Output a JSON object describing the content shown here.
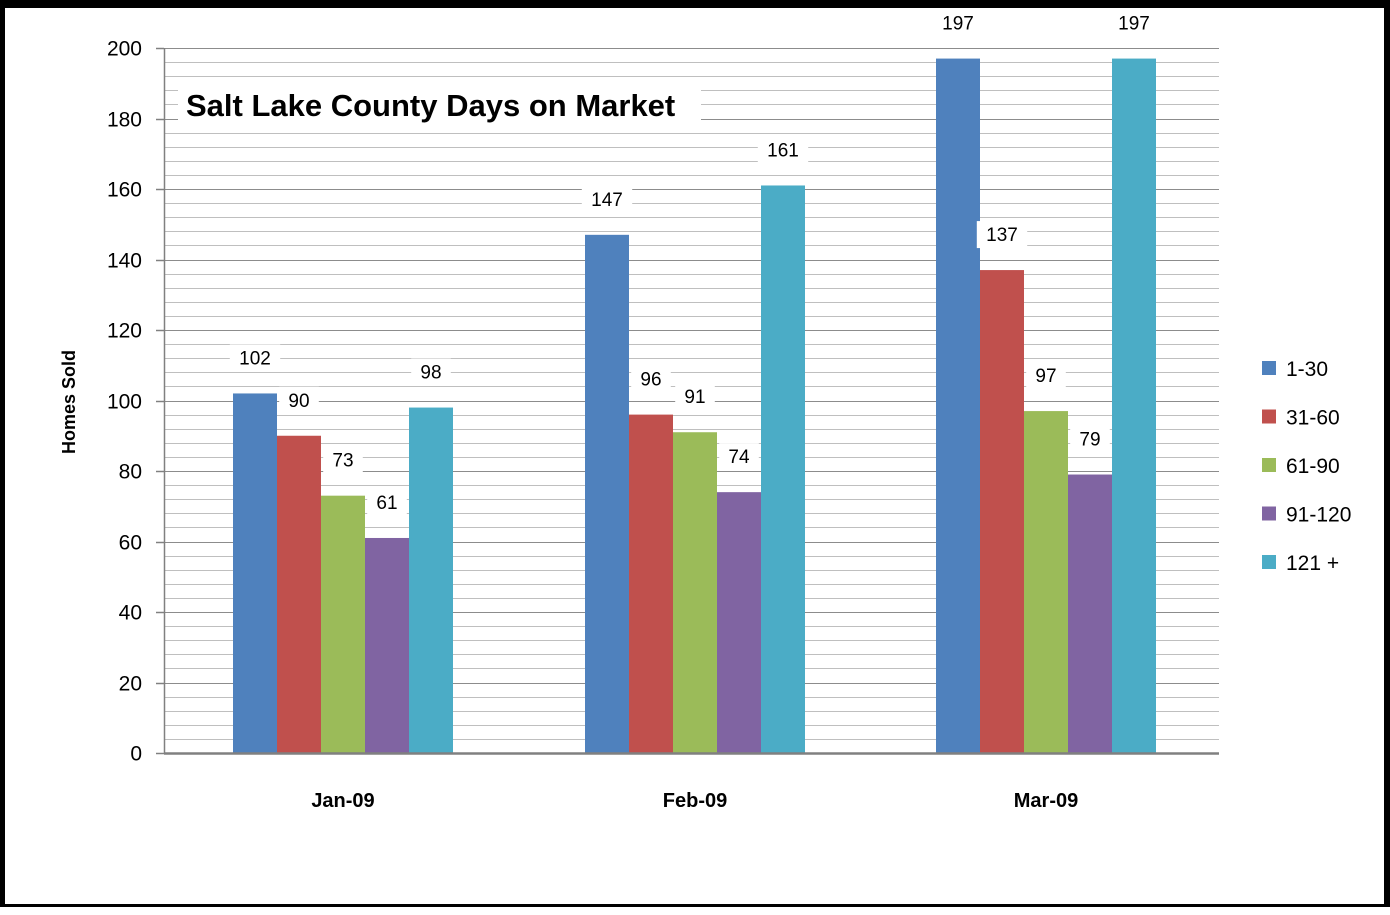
{
  "chart_data": {
    "type": "bar",
    "title": "Salt Lake County Days on Market",
    "xlabel": "",
    "ylabel": "Homes Sold",
    "categories": [
      "Jan-09",
      "Feb-09",
      "Mar-09"
    ],
    "series": [
      {
        "name": "1-30",
        "color": "#4F81BD",
        "values": [
          102,
          147,
          197
        ]
      },
      {
        "name": "31-60",
        "color": "#C0504D",
        "values": [
          90,
          96,
          137
        ]
      },
      {
        "name": "61-90",
        "color": "#9BBB59",
        "values": [
          73,
          91,
          97
        ]
      },
      {
        "name": "91-120",
        "color": "#8064A2",
        "values": [
          61,
          74,
          79
        ]
      },
      {
        "name": "121 +",
        "color": "#4BACC6",
        "values": [
          98,
          161,
          197
        ]
      }
    ],
    "ylim": [
      0,
      200
    ],
    "y_major_ticks": [
      0,
      20,
      40,
      60,
      80,
      100,
      120,
      140,
      160,
      180,
      200
    ],
    "y_minor_step": 4,
    "grid": true,
    "legend_position": "right",
    "data_labels": true
  }
}
